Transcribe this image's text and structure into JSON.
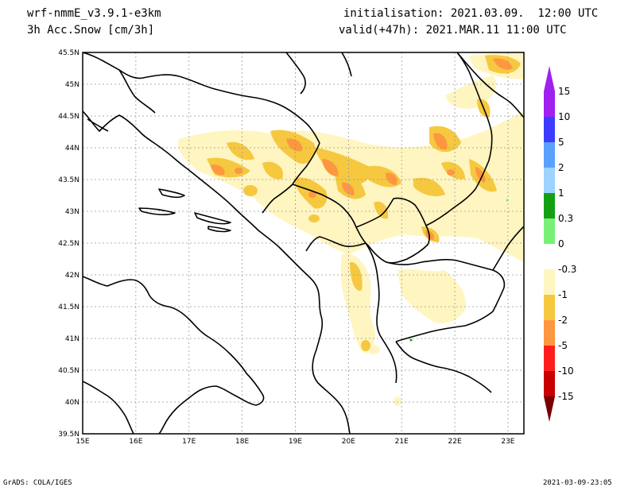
{
  "header": {
    "model": "wrf-nmmE_v3.9.1-e3km",
    "field": "3h Acc.Snow [cm/3h]",
    "init": "initialisation: 2021.03.09.  12:00 UTC",
    "valid": "valid(+47h): 2021.MAR.11 11:00 UTC"
  },
  "footer": {
    "credit": "GrADS: COLA/IGES",
    "timestamp": "2021-03-09-23:05"
  },
  "map": {
    "lon_ticks": [
      "15E",
      "16E",
      "17E",
      "18E",
      "19E",
      "20E",
      "21E",
      "22E",
      "23E"
    ],
    "lat_ticks": [
      "45.5N",
      "45N",
      "44.5N",
      "44N",
      "43.5N",
      "43N",
      "42.5N",
      "42N",
      "41.5N",
      "41N",
      "40.5N",
      "40N",
      "39.5N"
    ],
    "lon_range": [
      15,
      23.3
    ],
    "lat_range": [
      39.5,
      45.5
    ]
  },
  "colorbar": {
    "labels": [
      "15",
      "10",
      "5",
      "2",
      "1",
      "0.3",
      "0",
      "-0.3",
      "-1",
      "-2",
      "-5",
      "-10",
      "-15"
    ],
    "colors": [
      "#a020f0",
      "#3c3cff",
      "#5aa0ff",
      "#9ed2ff",
      "#14a014",
      "#78f078",
      "#ffffff",
      "#fff5c0",
      "#f5c840",
      "#ff9640",
      "#ff1e1e",
      "#c80000",
      "#8c0000"
    ],
    "top_arrow_color": "#a020f0",
    "bottom_arrow_color": "#780000"
  }
}
